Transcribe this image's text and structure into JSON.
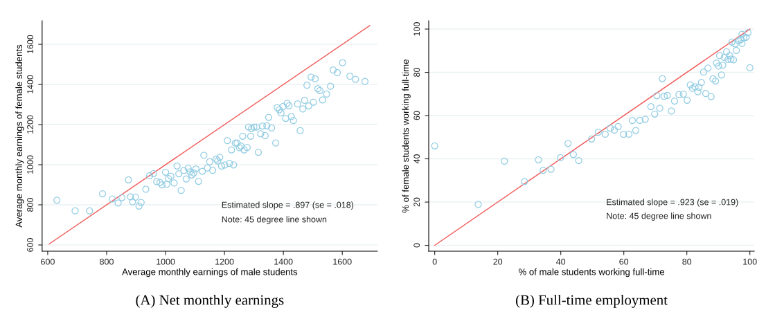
{
  "chart_data": [
    {
      "type": "scatter",
      "title": "(A) Net monthly earnings",
      "xlabel": "Average monthly earnings of male students",
      "ylabel": "Average monthly earnings of female students",
      "xlim": [
        581,
        1719
      ],
      "ylim": [
        569,
        1717
      ],
      "xticks": [
        600,
        800,
        1000,
        1200,
        1400,
        1600
      ],
      "yticks": [
        600,
        800,
        1000,
        1200,
        1400,
        1600
      ],
      "grid": "y",
      "legend": false,
      "annotations": [
        "Estimated slope = .897 (se = .018)",
        "Note: 45 degree line shown"
      ],
      "series": [
        {
          "marker": "circle",
          "color": "#93cde3",
          "x": [
            631,
            693,
            742,
            786,
            819,
            839,
            852,
            874,
            881,
            888,
            898,
            910,
            917,
            933,
            946,
            959,
            970,
            981,
            988,
            1000,
            1004,
            1010,
            1018,
            1029,
            1039,
            1045,
            1053,
            1062,
            1070,
            1077,
            1083,
            1089,
            1096,
            1103,
            1112,
            1125,
            1130,
            1142,
            1150,
            1160,
            1172,
            1177,
            1184,
            1190,
            1201,
            1217,
            1231,
            1210,
            1224,
            1237,
            1243,
            1251,
            1256,
            1267,
            1277,
            1262,
            1289,
            1282,
            1292,
            1300,
            1309,
            1315,
            1323,
            1329,
            1338,
            1344,
            1350,
            1360,
            1374,
            1379,
            1386,
            1392,
            1399,
            1408,
            1413,
            1419,
            1427,
            1434,
            1448,
            1457,
            1466,
            1472,
            1480,
            1486,
            1494,
            1502,
            1508,
            1517,
            1524,
            1533,
            1547,
            1560,
            1569,
            1583,
            1601,
            1626,
            1645,
            1677
          ],
          "values": [
            823,
            770,
            770,
            855,
            829,
            809,
            836,
            925,
            840,
            815,
            838,
            794,
            812,
            878,
            945,
            956,
            916,
            912,
            900,
            963,
            903,
            931,
            943,
            909,
            994,
            955,
            872,
            971,
            929,
            982,
            964,
            949,
            959,
            979,
            917,
            967,
            1047,
            984,
            1015,
            972,
            1028,
            1019,
            1037,
            993,
            999,
            1007,
            999,
            1120,
            1074,
            1108,
            1108,
            1085,
            1093,
            1074,
            1086,
            1142,
            1142,
            1188,
            1180,
            1188,
            1188,
            1062,
            1154,
            1193,
            1145,
            1194,
            1236,
            1183,
            1108,
            1285,
            1274,
            1258,
            1290,
            1231,
            1306,
            1294,
            1240,
            1220,
            1303,
            1170,
            1278,
            1321,
            1396,
            1293,
            1437,
            1312,
            1428,
            1379,
            1370,
            1323,
            1352,
            1391,
            1472,
            1459,
            1508,
            1441,
            1426,
            1415
          ]
        },
        {
          "type": "line",
          "marker": "none",
          "color": "#f06060",
          "x": [
            605,
            1693
          ],
          "values": [
            605,
            1693
          ]
        }
      ]
    },
    {
      "type": "scatter",
      "title": "(B) Full-time employment",
      "xlabel": "% of male students working full-time",
      "ylabel": "% of female students working full-time",
      "xlim": [
        -1.9,
        101.4
      ],
      "ylim": [
        -2.7,
        103.8
      ],
      "xticks": [
        0,
        20,
        40,
        60,
        80,
        100
      ],
      "yticks": [
        0,
        20,
        40,
        60,
        80,
        100
      ],
      "grid": "y",
      "legend": false,
      "annotations": [
        "Estimated slope = .923 (se = .019)",
        "Note: 45 degree line shown"
      ],
      "series": [
        {
          "marker": "circle",
          "color": "#93cde3",
          "x": [
            0,
            13.8,
            22.1,
            28.5,
            32.9,
            34.4,
            36.9,
            39.9,
            42.3,
            44.0,
            45.7,
            49.8,
            51.9,
            54.1,
            55.7,
            57.0,
            58.2,
            59.9,
            61.6,
            62.7,
            63.8,
            65.1,
            66.8,
            68.6,
            69.8,
            70.5,
            71.4,
            72.2,
            72.8,
            73.8,
            75.1,
            76.1,
            77.5,
            78.9,
            80.1,
            81.1,
            81.8,
            82.6,
            83.5,
            83.8,
            84.6,
            85.3,
            86.0,
            86.7,
            87.7,
            88.3,
            89.1,
            89.4,
            90.1,
            91.0,
            91.4,
            90.4,
            91.9,
            92.6,
            93.1,
            93.6,
            94.0,
            94.8,
            94.3,
            95.3,
            95.7,
            96.5,
            97.2,
            97.5,
            97.5,
            98.1,
            98.8,
            99.4,
            100
          ],
          "values": [
            46.0,
            18.9,
            38.9,
            29.5,
            39.6,
            34.7,
            35.2,
            40.5,
            47.1,
            42.0,
            39.2,
            49.2,
            52.3,
            51.4,
            54.2,
            53.3,
            54.9,
            51.3,
            51.4,
            57.7,
            53.1,
            57.8,
            58.3,
            64.1,
            60.7,
            69.2,
            63.4,
            77.1,
            68.9,
            69.3,
            62.1,
            66.7,
            69.7,
            69.9,
            67.1,
            74.2,
            72.6,
            73.3,
            71.0,
            73.1,
            75.3,
            80.1,
            70.2,
            82.0,
            68.8,
            77.0,
            76.0,
            84.3,
            82.9,
            78.8,
            83.3,
            87.7,
            86.9,
            89.5,
            86.0,
            87.7,
            86.1,
            85.8,
            94.0,
            93.2,
            90.1,
            94.5,
            95.2,
            97.6,
            93.4,
            96.0,
            96.2,
            98.3,
            82.1
          ]
        },
        {
          "type": "line",
          "marker": "none",
          "color": "#f06060",
          "x": [
            0,
            100
          ],
          "values": [
            0,
            100
          ]
        }
      ]
    }
  ]
}
